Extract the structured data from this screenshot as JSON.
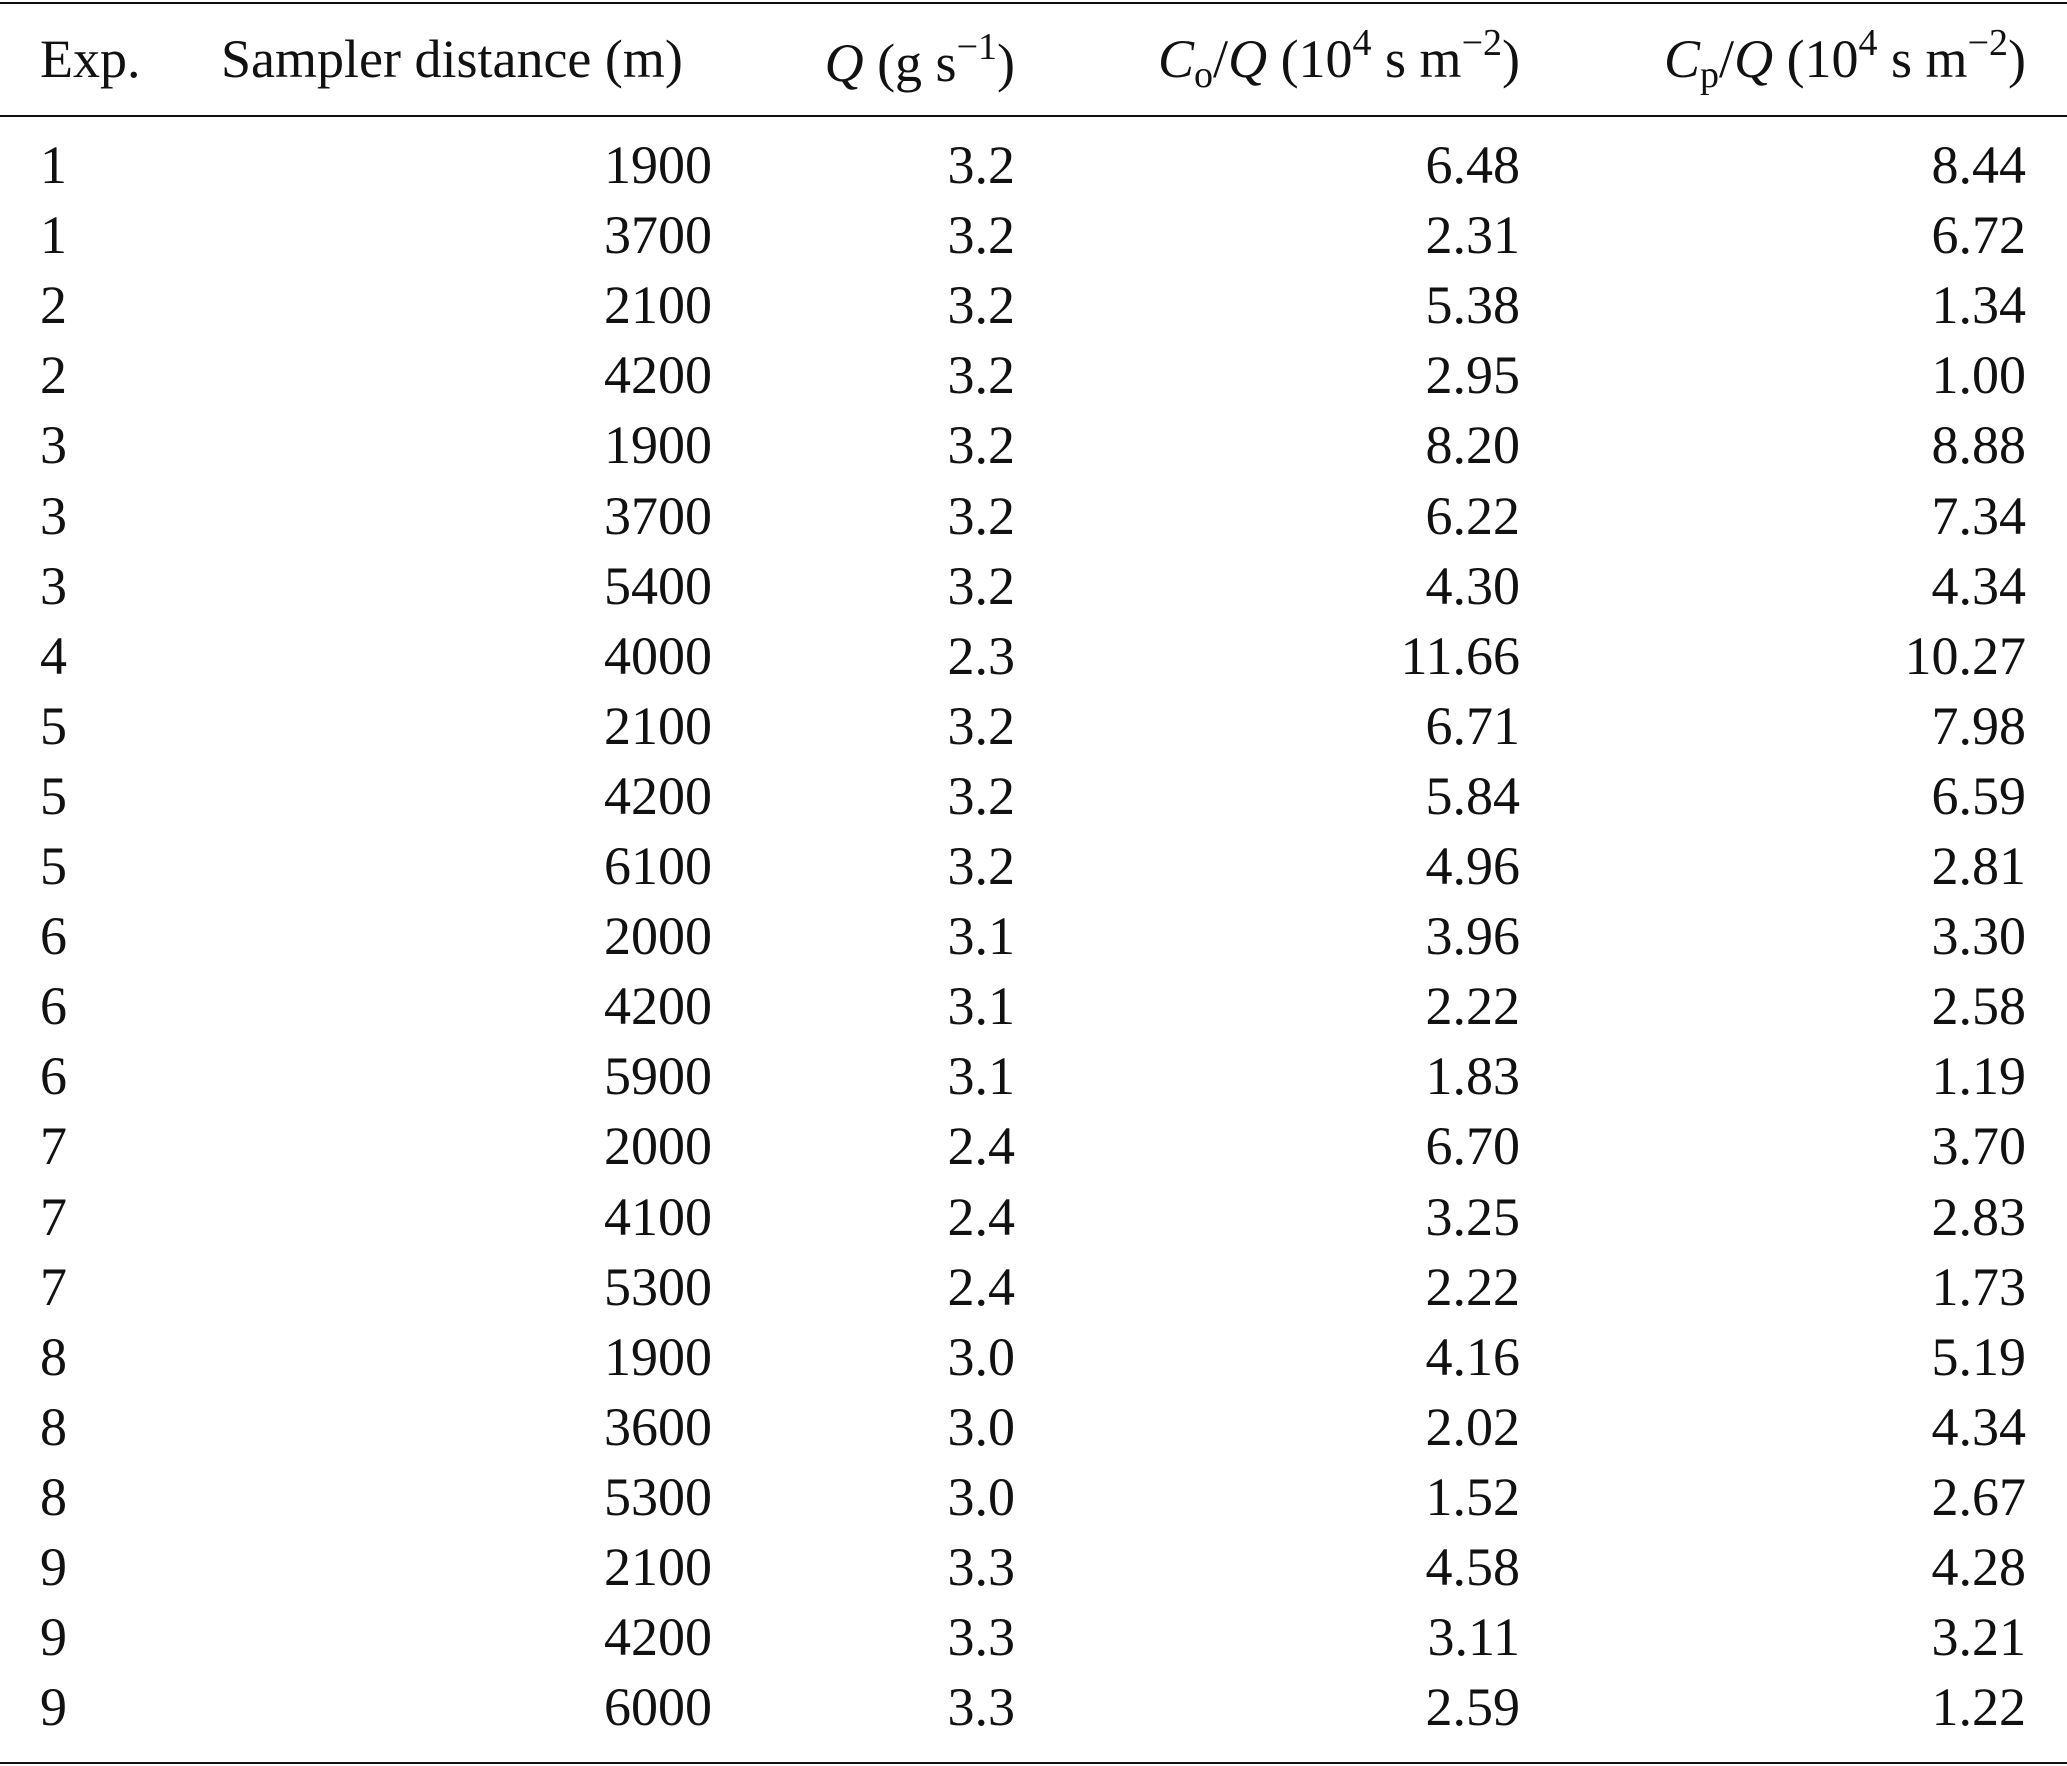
{
  "table": {
    "header": [
      [
        "Exp."
      ],
      [
        "Sampler distance (m)"
      ],
      [
        "Q",
        " (g s",
        "−1",
        ")"
      ],
      [
        "C",
        "o",
        "/",
        "Q",
        " (10",
        "4",
        " s m",
        "−2",
        ")"
      ],
      [
        "C",
        "p",
        "/",
        "Q",
        " (10",
        "4",
        " s m",
        "−2",
        ")"
      ]
    ],
    "rows": [
      [
        "1",
        "1900",
        "3.2",
        "6.48",
        "8.44"
      ],
      [
        "1",
        "3700",
        "3.2",
        "2.31",
        "6.72"
      ],
      [
        "2",
        "2100",
        "3.2",
        "5.38",
        "1.34"
      ],
      [
        "2",
        "4200",
        "3.2",
        "2.95",
        "1.00"
      ],
      [
        "3",
        "1900",
        "3.2",
        "8.20",
        "8.88"
      ],
      [
        "3",
        "3700",
        "3.2",
        "6.22",
        "7.34"
      ],
      [
        "3",
        "5400",
        "3.2",
        "4.30",
        "4.34"
      ],
      [
        "4",
        "4000",
        "2.3",
        "11.66",
        "10.27"
      ],
      [
        "5",
        "2100",
        "3.2",
        "6.71",
        "7.98"
      ],
      [
        "5",
        "4200",
        "3.2",
        "5.84",
        "6.59"
      ],
      [
        "5",
        "6100",
        "3.2",
        "4.96",
        "2.81"
      ],
      [
        "6",
        "2000",
        "3.1",
        "3.96",
        "3.30"
      ],
      [
        "6",
        "4200",
        "3.1",
        "2.22",
        "2.58"
      ],
      [
        "6",
        "5900",
        "3.1",
        "1.83",
        "1.19"
      ],
      [
        "7",
        "2000",
        "2.4",
        "6.70",
        "3.70"
      ],
      [
        "7",
        "4100",
        "2.4",
        "3.25",
        "2.83"
      ],
      [
        "7",
        "5300",
        "2.4",
        "2.22",
        "1.73"
      ],
      [
        "8",
        "1900",
        "3.0",
        "4.16",
        "5.19"
      ],
      [
        "8",
        "3600",
        "3.0",
        "2.02",
        "4.34"
      ],
      [
        "8",
        "5300",
        "3.0",
        "1.52",
        "2.67"
      ],
      [
        "9",
        "2100",
        "3.3",
        "4.58",
        "4.28"
      ],
      [
        "9",
        "4200",
        "3.3",
        "3.11",
        "3.21"
      ],
      [
        "9",
        "6000",
        "3.3",
        "2.59",
        "1.22"
      ]
    ]
  }
}
